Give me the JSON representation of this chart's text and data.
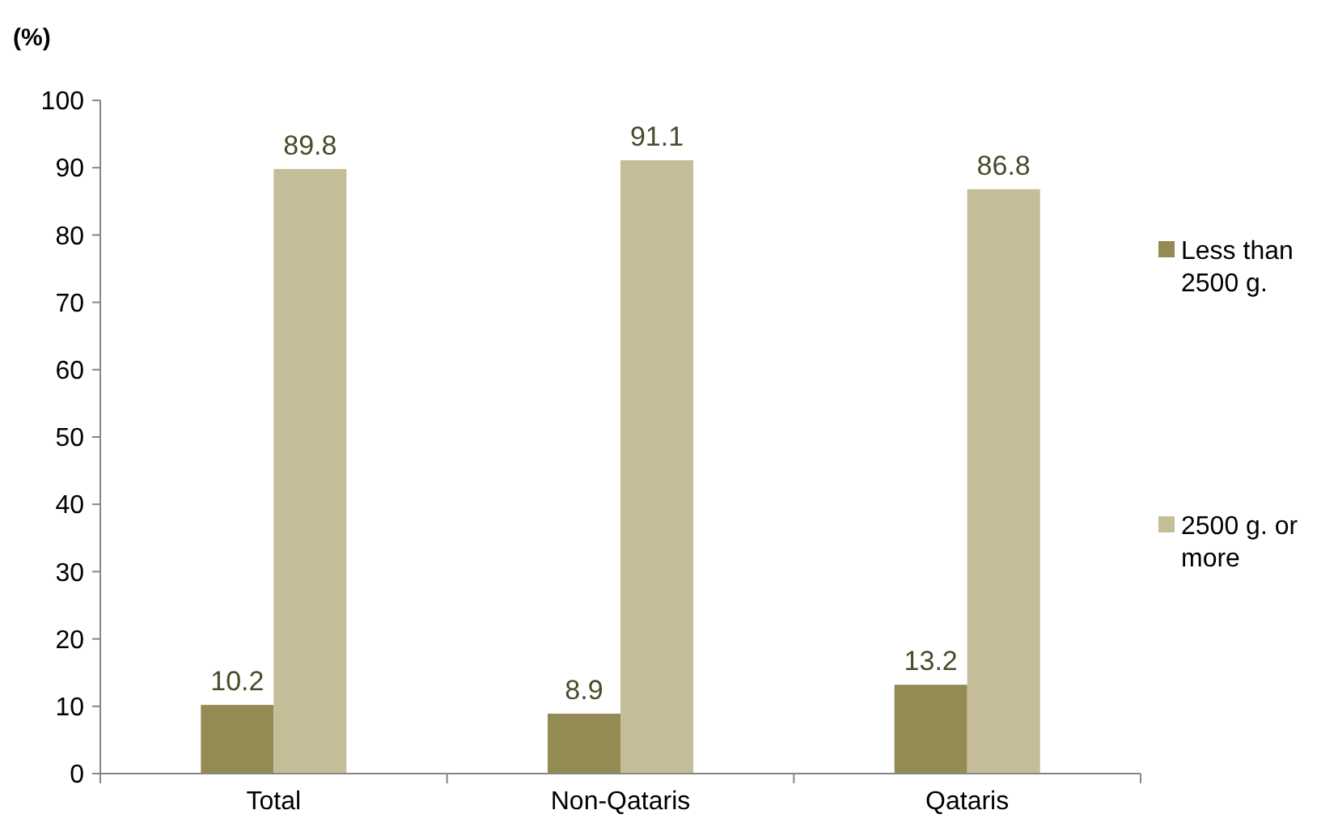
{
  "chart_data": {
    "type": "bar",
    "ylabel": "(%)",
    "categories": [
      "Total",
      "Non-Qataris",
      "Qataris"
    ],
    "series": [
      {
        "name": "Less than 2500 g.",
        "color": "#948a54",
        "values": [
          10.2,
          8.9,
          13.2
        ]
      },
      {
        "name": "2500 g. or more",
        "color": "#c4bd97",
        "values": [
          89.8,
          91.1,
          86.8
        ]
      }
    ],
    "ylim": [
      0,
      100
    ],
    "yticks": [
      0,
      10,
      20,
      30,
      40,
      50,
      60,
      70,
      80,
      90,
      100
    ],
    "grid": false,
    "legend": "right",
    "data_labels": true
  }
}
